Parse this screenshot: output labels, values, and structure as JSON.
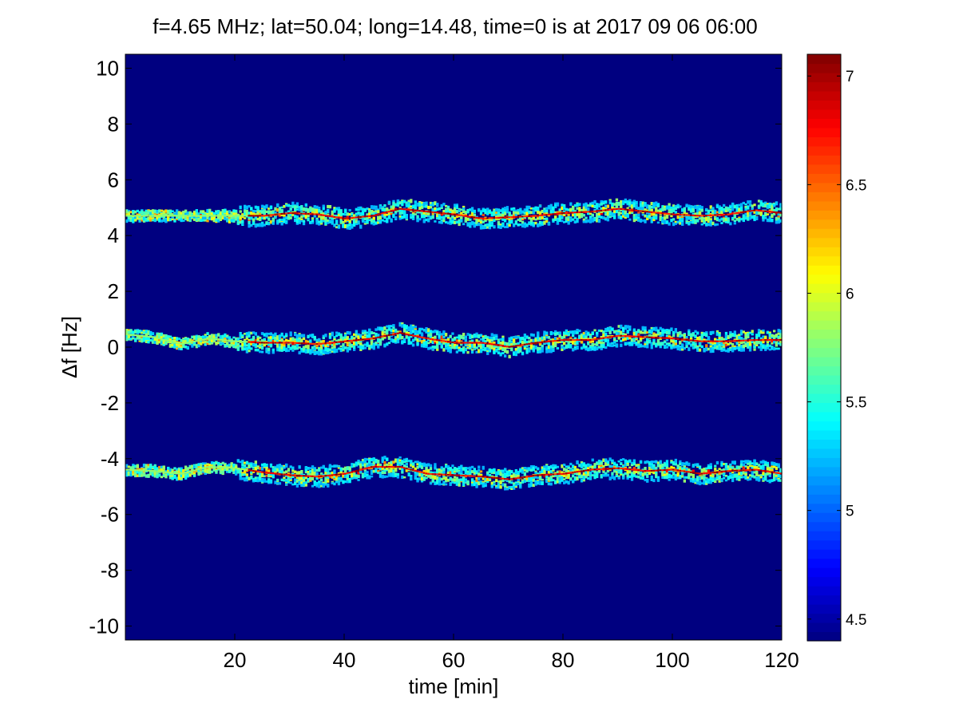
{
  "title": "f=4.65 MHz;  lat=50.04; long=14.48, time=0 is at 2017 09 06 06:00",
  "chart_data": {
    "type": "heatmap",
    "title": "f=4.65 MHz;  lat=50.04; long=14.48, time=0 is at 2017 09 06 06:00",
    "xlabel": "time [min]",
    "ylabel": "Δf [Hz]",
    "xlim": [
      0,
      120
    ],
    "ylim": [
      -10.5,
      10.5
    ],
    "xticks": [
      20,
      40,
      60,
      80,
      100,
      120
    ],
    "yticks": [
      10,
      8,
      6,
      4,
      2,
      0,
      -2,
      -4,
      -6,
      -8,
      -10
    ],
    "colorbar": {
      "colormap": "jet",
      "clim": [
        4.4,
        7.1
      ],
      "ticks": [
        4.5,
        5,
        5.5,
        6,
        6.5,
        7
      ]
    },
    "background_value": 4.4,
    "grid": false,
    "traces": [
      {
        "name": "upper",
        "t": [
          0,
          10,
          15,
          20,
          25,
          30,
          35,
          40,
          45,
          50,
          55,
          60,
          65,
          70,
          75,
          80,
          85,
          90,
          95,
          100,
          105,
          110,
          115,
          120
        ],
        "df": [
          4.7,
          4.7,
          4.7,
          4.7,
          4.7,
          4.8,
          4.75,
          4.6,
          4.7,
          4.95,
          4.85,
          4.75,
          4.6,
          4.65,
          4.7,
          4.8,
          4.85,
          4.95,
          4.85,
          4.75,
          4.7,
          4.75,
          4.9,
          4.8
        ]
      },
      {
        "name": "middle",
        "t": [
          0,
          5,
          10,
          15,
          20,
          25,
          30,
          35,
          40,
          45,
          50,
          55,
          60,
          65,
          70,
          75,
          80,
          85,
          90,
          95,
          100,
          105,
          110,
          115,
          120
        ],
        "df": [
          0.45,
          0.35,
          0.1,
          0.3,
          0.2,
          0.15,
          0.15,
          0.1,
          0.2,
          0.3,
          0.5,
          0.3,
          0.15,
          0.15,
          0.0,
          0.15,
          0.25,
          0.25,
          0.4,
          0.35,
          0.3,
          0.2,
          0.2,
          0.25,
          0.25
        ]
      },
      {
        "name": "lower",
        "t": [
          0,
          5,
          10,
          15,
          20,
          25,
          30,
          35,
          40,
          45,
          50,
          55,
          60,
          65,
          70,
          75,
          80,
          85,
          90,
          95,
          100,
          105,
          110,
          115,
          120
        ],
        "df": [
          -4.4,
          -4.45,
          -4.55,
          -4.3,
          -4.35,
          -4.5,
          -4.6,
          -4.65,
          -4.55,
          -4.3,
          -4.3,
          -4.55,
          -4.6,
          -4.65,
          -4.75,
          -4.6,
          -4.55,
          -4.4,
          -4.35,
          -4.45,
          -4.4,
          -4.55,
          -4.45,
          -4.4,
          -4.55
        ]
      }
    ]
  }
}
